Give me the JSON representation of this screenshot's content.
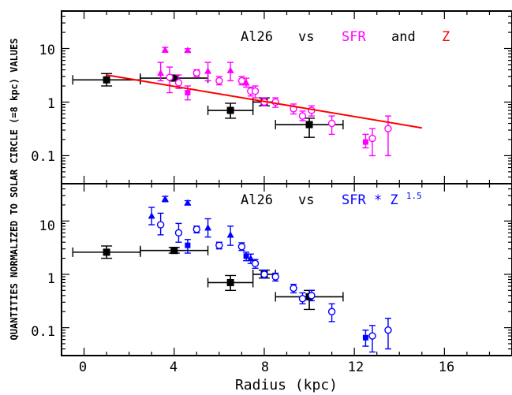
{
  "figure": {
    "ylabel": "QUANTITIES NORMALIZED TO SOLAR CIRCLE (=8 kpc) VALUES",
    "xlabel": "Radius (kpc)",
    "xticks": [
      "0",
      "4",
      "8",
      "12",
      "16"
    ],
    "yticks": [
      "10",
      "1",
      "0.1"
    ]
  },
  "colors": {
    "al26": "#000000",
    "sfr": "#ff00ff",
    "z": "#ff0000",
    "sfrz": "#0000ff"
  },
  "chart_data": [
    {
      "type": "scatter",
      "panel": "top",
      "title_parts": {
        "a": "Al26",
        "vs": "vs",
        "b": "SFR",
        "and": "and",
        "c": "Z"
      },
      "xlim": [
        -1,
        19
      ],
      "ylim": [
        0.03,
        50
      ],
      "yscale": "log",
      "series": [
        {
          "name": "Al26",
          "marker": "square-filled",
          "points": [
            {
              "x": 1.0,
              "y": 2.6,
              "xlo": -0.5,
              "xhi": 2.5,
              "ylo": 2.0,
              "yhi": 3.4
            },
            {
              "x": 4.0,
              "y": 2.8,
              "xlo": 2.5,
              "xhi": 5.5,
              "ylo": 2.5,
              "yhi": 3.2
            },
            {
              "x": 6.5,
              "y": 0.7,
              "xlo": 5.5,
              "xhi": 7.5,
              "ylo": 0.5,
              "yhi": 0.95
            },
            {
              "x": 8.0,
              "y": 1.0,
              "xlo": 7.5,
              "xhi": 8.5,
              "ylo": 0.85,
              "yhi": 1.2
            },
            {
              "x": 10.0,
              "y": 0.38,
              "xlo": 8.5,
              "xhi": 11.5,
              "ylo": 0.22,
              "yhi": 0.5
            }
          ]
        },
        {
          "name": "SFR",
          "marker": "mixed-open-filled",
          "points": [
            {
              "x": 3.4,
              "y": 3.5,
              "ylo": 2.5,
              "yhi": 5.5,
              "m": "tri"
            },
            {
              "x": 3.6,
              "y": 9.5,
              "ylo": 8.5,
              "yhi": 10.5,
              "m": "tri"
            },
            {
              "x": 3.8,
              "y": 2.9,
              "ylo": 1.5,
              "yhi": 4.5,
              "m": "circ"
            },
            {
              "x": 4.2,
              "y": 2.3,
              "ylo": 1.8,
              "yhi": 3.2,
              "m": "circ"
            },
            {
              "x": 4.6,
              "y": 9.3,
              "ylo": 8.7,
              "yhi": 9.9,
              "m": "tri"
            },
            {
              "x": 4.6,
              "y": 1.5,
              "ylo": 1.1,
              "yhi": 2.0,
              "m": "sq"
            },
            {
              "x": 5.0,
              "y": 3.5,
              "ylo": 3.0,
              "yhi": 4.0,
              "m": "circ"
            },
            {
              "x": 5.5,
              "y": 3.8,
              "ylo": 2.5,
              "yhi": 5.5,
              "m": "tri"
            },
            {
              "x": 6.0,
              "y": 2.5,
              "ylo": 2.1,
              "yhi": 3.0,
              "m": "circ"
            },
            {
              "x": 6.5,
              "y": 3.9,
              "ylo": 2.5,
              "yhi": 5.5,
              "m": "tri"
            },
            {
              "x": 7.0,
              "y": 2.5,
              "ylo": 2.1,
              "yhi": 3.0,
              "m": "circ"
            },
            {
              "x": 7.2,
              "y": 2.3,
              "ylo": 1.9,
              "yhi": 2.8,
              "m": "tri"
            },
            {
              "x": 7.4,
              "y": 1.6,
              "ylo": 1.3,
              "yhi": 1.9,
              "m": "circ"
            },
            {
              "x": 7.6,
              "y": 1.6,
              "ylo": 1.2,
              "yhi": 2.0,
              "m": "circ"
            },
            {
              "x": 8.0,
              "y": 1.0,
              "ylo": 0.85,
              "yhi": 1.2,
              "m": "circ"
            },
            {
              "x": 8.5,
              "y": 1.0,
              "ylo": 0.8,
              "yhi": 1.2,
              "m": "circ"
            },
            {
              "x": 9.3,
              "y": 0.75,
              "ylo": 0.6,
              "yhi": 0.92,
              "m": "circ"
            },
            {
              "x": 9.7,
              "y": 0.55,
              "ylo": 0.45,
              "yhi": 0.68,
              "m": "circ"
            },
            {
              "x": 10.1,
              "y": 0.7,
              "ylo": 0.55,
              "yhi": 0.85,
              "m": "circ"
            },
            {
              "x": 11.0,
              "y": 0.4,
              "ylo": 0.25,
              "yhi": 0.55,
              "m": "circ"
            },
            {
              "x": 12.5,
              "y": 0.18,
              "ylo": 0.14,
              "yhi": 0.25,
              "m": "sq"
            },
            {
              "x": 12.8,
              "y": 0.21,
              "ylo": 0.1,
              "yhi": 0.32,
              "m": "circ"
            },
            {
              "x": 13.5,
              "y": 0.32,
              "ylo": 0.1,
              "yhi": 0.55,
              "m": "circ"
            }
          ]
        },
        {
          "name": "Z",
          "marker": "line",
          "line": [
            {
              "x": 1.0,
              "y": 3.2
            },
            {
              "x": 15.0,
              "y": 0.33
            }
          ]
        }
      ]
    },
    {
      "type": "scatter",
      "panel": "bottom",
      "title_parts": {
        "a": "Al26",
        "vs": "vs",
        "b": "SFR * Z",
        "exp": "1.5"
      },
      "xlim": [
        -1,
        19
      ],
      "ylim": [
        0.03,
        50
      ],
      "yscale": "log",
      "series": [
        {
          "name": "Al26",
          "marker": "square-filled",
          "points": [
            {
              "x": 1.0,
              "y": 2.6,
              "xlo": -0.5,
              "xhi": 2.5,
              "ylo": 2.0,
              "yhi": 3.4
            },
            {
              "x": 4.0,
              "y": 2.8,
              "xlo": 2.5,
              "xhi": 5.5,
              "ylo": 2.5,
              "yhi": 3.2
            },
            {
              "x": 6.5,
              "y": 0.7,
              "xlo": 5.5,
              "xhi": 7.5,
              "ylo": 0.5,
              "yhi": 0.95
            },
            {
              "x": 8.0,
              "y": 1.0,
              "xlo": 7.5,
              "xhi": 8.5,
              "ylo": 0.85,
              "yhi": 1.2
            },
            {
              "x": 10.0,
              "y": 0.38,
              "xlo": 8.5,
              "xhi": 11.5,
              "ylo": 0.22,
              "yhi": 0.5
            }
          ]
        },
        {
          "name": "SFR * Z^1.5",
          "marker": "mixed-open-filled",
          "points": [
            {
              "x": 3.0,
              "y": 12.5,
              "ylo": 8.5,
              "yhi": 18.0,
              "m": "tri"
            },
            {
              "x": 3.4,
              "y": 8.5,
              "ylo": 5.5,
              "yhi": 14.0,
              "m": "circ"
            },
            {
              "x": 3.6,
              "y": 26.0,
              "ylo": 23.0,
              "yhi": 29.0,
              "m": "tri"
            },
            {
              "x": 4.2,
              "y": 6.0,
              "ylo": 4.0,
              "yhi": 9.0,
              "m": "circ"
            },
            {
              "x": 4.6,
              "y": 22.0,
              "ylo": 20.0,
              "yhi": 24.0,
              "m": "tri"
            },
            {
              "x": 4.6,
              "y": 3.5,
              "ylo": 2.5,
              "yhi": 4.5,
              "m": "sq"
            },
            {
              "x": 5.0,
              "y": 7.0,
              "ylo": 6.0,
              "yhi": 8.0,
              "m": "circ"
            },
            {
              "x": 5.5,
              "y": 7.5,
              "ylo": 5.0,
              "yhi": 11.0,
              "m": "tri"
            },
            {
              "x": 6.0,
              "y": 3.5,
              "ylo": 3.0,
              "yhi": 4.0,
              "m": "circ"
            },
            {
              "x": 6.5,
              "y": 5.5,
              "ylo": 3.5,
              "yhi": 8.0,
              "m": "tri"
            },
            {
              "x": 7.0,
              "y": 3.3,
              "ylo": 2.8,
              "yhi": 3.9,
              "m": "circ"
            },
            {
              "x": 7.2,
              "y": 2.2,
              "ylo": 1.8,
              "yhi": 2.6,
              "m": "sq"
            },
            {
              "x": 7.4,
              "y": 2.0,
              "ylo": 1.6,
              "yhi": 2.4,
              "m": "tri"
            },
            {
              "x": 7.6,
              "y": 1.6,
              "ylo": 1.3,
              "yhi": 1.9,
              "m": "circ"
            },
            {
              "x": 8.0,
              "y": 1.0,
              "ylo": 0.85,
              "yhi": 1.2,
              "m": "circ"
            },
            {
              "x": 8.5,
              "y": 0.9,
              "ylo": 0.75,
              "yhi": 1.05,
              "m": "circ"
            },
            {
              "x": 9.3,
              "y": 0.55,
              "ylo": 0.45,
              "yhi": 0.65,
              "m": "circ"
            },
            {
              "x": 9.7,
              "y": 0.35,
              "ylo": 0.28,
              "yhi": 0.45,
              "m": "circ"
            },
            {
              "x": 10.1,
              "y": 0.4,
              "ylo": 0.32,
              "yhi": 0.5,
              "m": "circ"
            },
            {
              "x": 11.0,
              "y": 0.2,
              "ylo": 0.13,
              "yhi": 0.28,
              "m": "circ"
            },
            {
              "x": 12.5,
              "y": 0.065,
              "ylo": 0.045,
              "yhi": 0.09,
              "m": "sq"
            },
            {
              "x": 12.8,
              "y": 0.07,
              "ylo": 0.035,
              "yhi": 0.11,
              "m": "circ"
            },
            {
              "x": 13.5,
              "y": 0.09,
              "ylo": 0.04,
              "yhi": 0.15,
              "m": "circ"
            }
          ]
        }
      ]
    }
  ]
}
